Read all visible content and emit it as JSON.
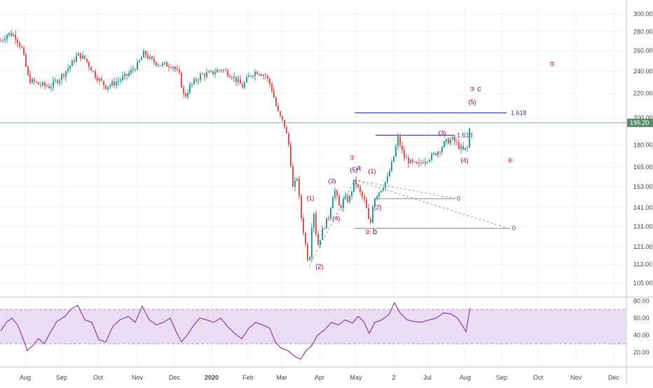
{
  "chart_data": {
    "type": "candlestick",
    "price_axis": {
      "ticks": [
        "300.00",
        "280.00",
        "260.00",
        "240.00",
        "220.00",
        "200.00",
        "180.00",
        "165.00",
        "153.00",
        "141.00",
        "131.00",
        "121.00",
        "113.00",
        "105.00"
      ],
      "current_price": "196.20",
      "range": [
        100,
        310
      ],
      "scale": "log"
    },
    "time_axis": {
      "ticks": [
        "Aug",
        "Sep",
        "Oct",
        "Nov",
        "Dec",
        "2020",
        "Feb",
        "Mar",
        "Apr",
        "May",
        "2",
        "Jul",
        "Aug",
        "Sep",
        "Oct",
        "Nov",
        "Dec"
      ],
      "bold": [
        "2020"
      ]
    },
    "rsi_axis": {
      "ticks": [
        "80.00",
        "60.00",
        "40.00",
        "20.00"
      ],
      "band": [
        30,
        70
      ]
    },
    "price_path": [
      {
        "d": 0,
        "p": 270
      },
      {
        "d": 10,
        "p": 278
      },
      {
        "d": 20,
        "p": 276
      },
      {
        "d": 30,
        "p": 262
      },
      {
        "d": 40,
        "p": 232
      },
      {
        "d": 55,
        "p": 228
      },
      {
        "d": 70,
        "p": 226
      },
      {
        "d": 85,
        "p": 234
      },
      {
        "d": 100,
        "p": 246
      },
      {
        "d": 110,
        "p": 256
      },
      {
        "d": 120,
        "p": 252
      },
      {
        "d": 135,
        "p": 236
      },
      {
        "d": 150,
        "p": 226
      },
      {
        "d": 165,
        "p": 230
      },
      {
        "d": 180,
        "p": 236
      },
      {
        "d": 195,
        "p": 246
      },
      {
        "d": 205,
        "p": 258
      },
      {
        "d": 215,
        "p": 250
      },
      {
        "d": 230,
        "p": 246
      },
      {
        "d": 245,
        "p": 246
      },
      {
        "d": 255,
        "p": 236
      },
      {
        "d": 262,
        "p": 216
      },
      {
        "d": 270,
        "p": 226
      },
      {
        "d": 285,
        "p": 236
      },
      {
        "d": 300,
        "p": 238
      },
      {
        "d": 315,
        "p": 242
      },
      {
        "d": 330,
        "p": 236
      },
      {
        "d": 345,
        "p": 226
      },
      {
        "d": 355,
        "p": 236
      },
      {
        "d": 365,
        "p": 240
      },
      {
        "d": 378,
        "p": 236
      },
      {
        "d": 386,
        "p": 226
      },
      {
        "d": 395,
        "p": 205
      },
      {
        "d": 405,
        "p": 194
      },
      {
        "d": 412,
        "p": 178
      },
      {
        "d": 418,
        "p": 147
      },
      {
        "d": 422,
        "p": 163
      },
      {
        "d": 428,
        "p": 138
      },
      {
        "d": 434,
        "p": 124
      },
      {
        "d": 440,
        "p": 112
      },
      {
        "d": 446,
        "p": 142
      },
      {
        "d": 452,
        "p": 121
      },
      {
        "d": 460,
        "p": 130
      },
      {
        "d": 468,
        "p": 136
      },
      {
        "d": 476,
        "p": 152
      },
      {
        "d": 484,
        "p": 140
      },
      {
        "d": 490,
        "p": 146
      },
      {
        "d": 497,
        "p": 145
      },
      {
        "d": 505,
        "p": 157
      },
      {
        "d": 512,
        "p": 150
      },
      {
        "d": 520,
        "p": 144
      },
      {
        "d": 527,
        "p": 130
      },
      {
        "d": 532,
        "p": 146
      },
      {
        "d": 538,
        "p": 149
      },
      {
        "d": 545,
        "p": 153
      },
      {
        "d": 552,
        "p": 158
      },
      {
        "d": 560,
        "p": 170
      },
      {
        "d": 567,
        "p": 185
      },
      {
        "d": 575,
        "p": 172
      },
      {
        "d": 585,
        "p": 168
      },
      {
        "d": 595,
        "p": 166
      },
      {
        "d": 605,
        "p": 170
      },
      {
        "d": 615,
        "p": 172
      },
      {
        "d": 625,
        "p": 176
      },
      {
        "d": 635,
        "p": 182
      },
      {
        "d": 645,
        "p": 184
      },
      {
        "d": 652,
        "p": 180
      },
      {
        "d": 660,
        "p": 176
      },
      {
        "d": 666,
        "p": 178
      },
      {
        "d": 670,
        "p": 196
      }
    ],
    "rsi_path": [
      {
        "d": 0,
        "v": 45
      },
      {
        "d": 8,
        "v": 55
      },
      {
        "d": 16,
        "v": 60
      },
      {
        "d": 24,
        "v": 52
      },
      {
        "d": 30,
        "v": 40
      },
      {
        "d": 38,
        "v": 22
      },
      {
        "d": 46,
        "v": 28
      },
      {
        "d": 54,
        "v": 36
      },
      {
        "d": 62,
        "v": 30
      },
      {
        "d": 70,
        "v": 42
      },
      {
        "d": 80,
        "v": 56
      },
      {
        "d": 92,
        "v": 62
      },
      {
        "d": 100,
        "v": 70
      },
      {
        "d": 110,
        "v": 75
      },
      {
        "d": 120,
        "v": 58
      },
      {
        "d": 130,
        "v": 55
      },
      {
        "d": 140,
        "v": 35
      },
      {
        "d": 150,
        "v": 32
      },
      {
        "d": 160,
        "v": 50
      },
      {
        "d": 170,
        "v": 58
      },
      {
        "d": 182,
        "v": 62
      },
      {
        "d": 192,
        "v": 55
      },
      {
        "d": 202,
        "v": 74
      },
      {
        "d": 212,
        "v": 58
      },
      {
        "d": 222,
        "v": 52
      },
      {
        "d": 232,
        "v": 55
      },
      {
        "d": 242,
        "v": 60
      },
      {
        "d": 250,
        "v": 45
      },
      {
        "d": 258,
        "v": 32
      },
      {
        "d": 266,
        "v": 40
      },
      {
        "d": 274,
        "v": 50
      },
      {
        "d": 284,
        "v": 60
      },
      {
        "d": 294,
        "v": 58
      },
      {
        "d": 304,
        "v": 55
      },
      {
        "d": 314,
        "v": 60
      },
      {
        "d": 324,
        "v": 50
      },
      {
        "d": 334,
        "v": 42
      },
      {
        "d": 344,
        "v": 36
      },
      {
        "d": 354,
        "v": 48
      },
      {
        "d": 364,
        "v": 55
      },
      {
        "d": 374,
        "v": 52
      },
      {
        "d": 384,
        "v": 48
      },
      {
        "d": 392,
        "v": 32
      },
      {
        "d": 400,
        "v": 25
      },
      {
        "d": 410,
        "v": 22
      },
      {
        "d": 420,
        "v": 15
      },
      {
        "d": 428,
        "v": 12
      },
      {
        "d": 436,
        "v": 22
      },
      {
        "d": 444,
        "v": 28
      },
      {
        "d": 452,
        "v": 40
      },
      {
        "d": 462,
        "v": 46
      },
      {
        "d": 472,
        "v": 55
      },
      {
        "d": 482,
        "v": 52
      },
      {
        "d": 492,
        "v": 58
      },
      {
        "d": 502,
        "v": 54
      },
      {
        "d": 510,
        "v": 62
      },
      {
        "d": 518,
        "v": 56
      },
      {
        "d": 526,
        "v": 42
      },
      {
        "d": 534,
        "v": 55
      },
      {
        "d": 544,
        "v": 58
      },
      {
        "d": 554,
        "v": 64
      },
      {
        "d": 562,
        "v": 78
      },
      {
        "d": 570,
        "v": 66
      },
      {
        "d": 580,
        "v": 58
      },
      {
        "d": 590,
        "v": 56
      },
      {
        "d": 600,
        "v": 55
      },
      {
        "d": 612,
        "v": 58
      },
      {
        "d": 622,
        "v": 60
      },
      {
        "d": 632,
        "v": 66
      },
      {
        "d": 642,
        "v": 65
      },
      {
        "d": 652,
        "v": 60
      },
      {
        "d": 660,
        "v": 50
      },
      {
        "d": 664,
        "v": 44
      },
      {
        "d": 670,
        "v": 72
      }
    ],
    "wave_labels": [
      {
        "text": "(1)",
        "d": 442,
        "p": 145,
        "color": "#b0005a"
      },
      {
        "text": "(2)",
        "d": 455,
        "p": 111,
        "color": "#b0005a"
      },
      {
        "text": "(3)",
        "d": 473,
        "p": 155,
        "color": "#b0005a"
      },
      {
        "text": "(4)",
        "d": 479,
        "p": 134,
        "color": "#b0005a"
      },
      {
        "text": "(5)",
        "d": 504,
        "p": 162,
        "color": "#b0005a"
      },
      {
        "text": "①",
        "d": 502,
        "p": 170,
        "color": "#b0005a"
      },
      {
        "text": "a",
        "d": 511,
        "p": 163,
        "color": "#3a2a8a"
      },
      {
        "text": "②",
        "d": 524,
        "p": 127,
        "color": "#b0005a"
      },
      {
        "text": "b",
        "d": 534,
        "p": 127,
        "color": "#3a2a8a"
      },
      {
        "text": "(1)",
        "d": 530,
        "p": 161,
        "color": "#b0005a"
      },
      {
        "text": "(2)",
        "d": 538,
        "p": 140,
        "color": "#b0005a"
      },
      {
        "text": "(3)",
        "d": 630,
        "p": 187,
        "color": "#b0005a"
      },
      {
        "text": "(4)",
        "d": 662,
        "p": 168,
        "color": "#b0005a"
      },
      {
        "text": "③",
        "d": 673,
        "p": 222,
        "color": "#b0005a"
      },
      {
        "text": "c",
        "d": 683,
        "p": 222,
        "color": "#3a2a8a"
      },
      {
        "text": "(5)",
        "d": 673,
        "p": 211,
        "color": "#b0005a"
      },
      {
        "text": "④",
        "d": 727,
        "p": 168,
        "color": "#b0005a"
      },
      {
        "text": "⑤",
        "d": 787,
        "p": 245,
        "color": "#b0005a"
      }
    ],
    "fib_lines": [
      {
        "label": "1.618",
        "d1": 505,
        "d2": 722,
        "p": 204
      },
      {
        "label": "1.618",
        "d1": 535,
        "d2": 648,
        "p": 187
      }
    ],
    "zero_lines": [
      {
        "label": "0",
        "d1": 533,
        "d2": 648,
        "p": 146
      },
      {
        "label": "0",
        "d1": 505,
        "d2": 727,
        "p": 130
      }
    ],
    "dashed_lines": [
      {
        "d1": 505,
        "p1": 157,
        "d2": 650,
        "p2": 146
      },
      {
        "d1": 505,
        "p1": 157,
        "d2": 725,
        "p2": 130
      },
      {
        "d1": 440,
        "p1": 112,
        "d2": 505,
        "p2": 157
      }
    ],
    "current_price_line": 196.2
  }
}
